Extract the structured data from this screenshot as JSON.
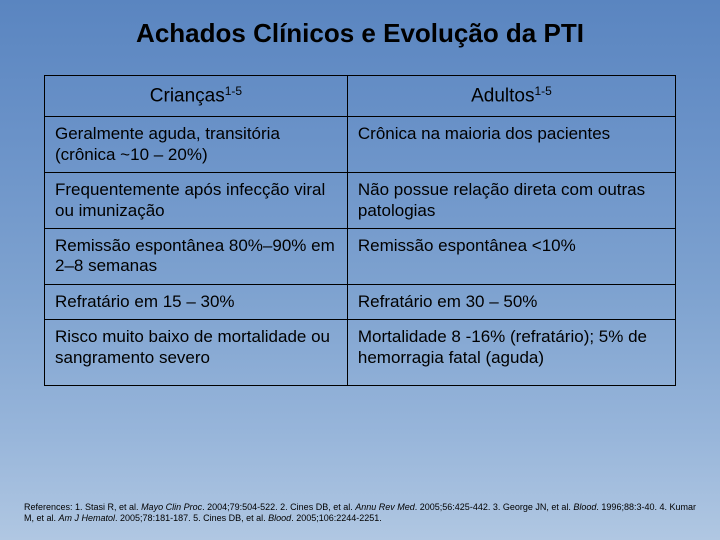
{
  "title": "Achados Clínicos e Evolução da PTI",
  "headers": {
    "left_label": "Crianças",
    "left_sup": "1-5",
    "right_label": "Adultos",
    "right_sup": "1-5"
  },
  "rows": [
    {
      "left": "Geralmente aguda, transitória (crônica ~10 – 20%)",
      "right": "Crônica na maioria dos pacientes"
    },
    {
      "left": "Frequentemente após infecção viral ou imunização",
      "right": "Não possue relação direta com outras patologias"
    },
    {
      "left": "Remissão espontânea 80%–90% em 2–8 semanas",
      "right": "Remissão espontânea <10%"
    },
    {
      "left": "Refratário em 15 – 30%",
      "right": "Refratário em 30 – 50%"
    },
    {
      "left": "Risco muito baixo de mortalidade ou sangramento severo",
      "right": "Mortalidade 8 -16% (refratário); 5% de hemorragia fatal (aguda)"
    }
  ],
  "references": {
    "prefix": "References: ",
    "r1a": "1. Stasi R, et al. ",
    "r1b": "Mayo Clin Proc",
    "r1c": ". 2004;79:504-522. ",
    "r2a": "2. Cines DB, et al. ",
    "r2b": "Annu Rev Med",
    "r2c": ". 2005;56:425-442. ",
    "r3a": "3. George JN, et al. ",
    "r3b": "Blood",
    "r3c": ". 1996;88:3-40. ",
    "r4a": "4. Kumar M, et al. ",
    "r4b": "Am J Hematol",
    "r4c": ". 2005;78:181-187. ",
    "r5a": "5. Cines DB, et al. ",
    "r5b": "Blood",
    "r5c": ". 2005;106:2244-2251."
  },
  "colors": {
    "border": "#000000",
    "text": "#000000",
    "bg_top": "#5a85c0",
    "bg_bottom": "#b0c7e2"
  }
}
